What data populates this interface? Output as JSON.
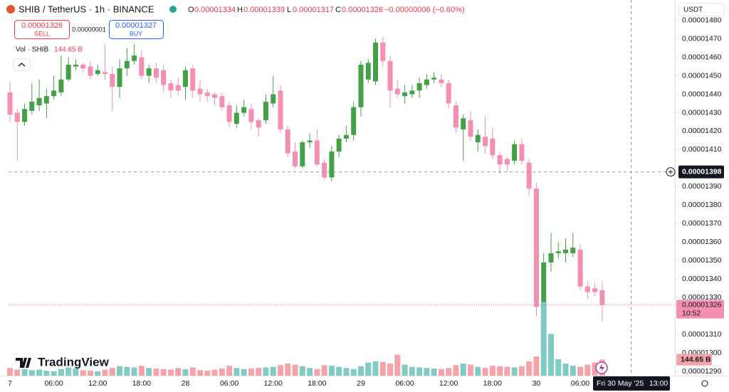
{
  "chart_data": {
    "type": "candlestick",
    "title": "SHIB / TetherUS · 1h · BINANCE",
    "legend": {
      "open_label": "O",
      "open": "0.00001334",
      "high_label": "H",
      "high": "0.00001339",
      "low_label": "L",
      "low": "0.00001317",
      "close_label": "C",
      "close": "0.00001326",
      "change": "−0.00000008 (−0.60%)"
    },
    "trade": {
      "sell_price": "0.00001326",
      "sell": "SELL",
      "spread": "0.00000001",
      "buy_price": "0.00001327",
      "buy": "BUY"
    },
    "currency": "USDT",
    "brand": "TradingView",
    "categories": [
      "7",
      null,
      null,
      null,
      null,
      null,
      "06:00",
      null,
      null,
      null,
      null,
      null,
      "12:00",
      null,
      null,
      null,
      null,
      null,
      "18:00",
      null,
      null,
      null,
      null,
      null,
      "28",
      null,
      null,
      null,
      null,
      null,
      "06:00",
      null,
      null,
      null,
      null,
      null,
      "12:00",
      null,
      null,
      null,
      null,
      null,
      "18:00",
      null,
      null,
      null,
      null,
      null,
      "29",
      null,
      null,
      null,
      null,
      null,
      "06:00",
      null,
      null,
      null,
      null,
      null,
      "12:00",
      null,
      null,
      null,
      null,
      null,
      "18:00",
      null,
      null,
      null,
      null,
      null,
      "30",
      null,
      null,
      null,
      null,
      null,
      "06:00",
      null,
      null,
      null
    ],
    "open": [
      1.441e-05,
      1.43e-05,
      1.425e-05,
      1.431e-05,
      1.434e-05,
      1.435e-05,
      1.439e-05,
      1.441e-05,
      1.448e-05,
      1.455e-05,
      1.456e-05,
      1.455e-05,
      1.451e-05,
      1.452e-05,
      1.451e-05,
      1.444e-05,
      1.454e-05,
      1.458e-05,
      1.46e-05,
      1.45e-05,
      1.454e-05,
      1.453e-05,
      1.446e-05,
      1.445e-05,
      1.444e-05,
      1.454e-05,
      1.443e-05,
      1.441e-05,
      1.44e-05,
      1.439e-05,
      1.434e-05,
      1.424e-05,
      1.43e-05,
      1.432e-05,
      1.426e-05,
      1.426e-05,
      1.435e-05,
      1.442e-05,
      1.421e-05,
      1.409e-05,
      1.401e-05,
      1.414e-05,
      1.415e-05,
      1.403e-05,
      1.395e-05,
      1.409e-05,
      1.416e-05,
      1.418e-05,
      1.433e-05,
      1.448e-05,
      1.447e-05,
      1.468e-05,
      1.458e-05,
      1.443e-05,
      1.439e-05,
      1.44e-05,
      1.442e-05,
      1.445e-05,
      1.448e-05,
      1.448e-05,
      1.446e-05,
      1.434e-05,
      1.421e-05,
      1.426e-05,
      1.414e-05,
      1.417e-05,
      1.416e-05,
      1.407e-05,
      1.405e-05,
      1.404e-05,
      1.413e-05,
      1.403e-05,
      1.389e-05,
      1.327e-05,
      1.349e-05,
      1.354e-05,
      1.354e-05,
      1.354e-05,
      1.356e-05,
      1.336e-05,
      1.335e-05,
      1.334e-05
    ],
    "high": [
      1.447e-05,
      1.432e-05,
      1.435e-05,
      1.446e-05,
      1.448e-05,
      1.443e-05,
      1.45e-05,
      1.461e-05,
      1.46e-05,
      1.459e-05,
      1.457e-05,
      1.458e-05,
      1.456e-05,
      1.467e-05,
      1.455e-05,
      1.459e-05,
      1.465e-05,
      1.467e-05,
      1.464e-05,
      1.456e-05,
      1.457e-05,
      1.456e-05,
      1.448e-05,
      1.449e-05,
      1.455e-05,
      1.456e-05,
      1.448e-05,
      1.443e-05,
      1.441e-05,
      1.441e-05,
      1.436e-05,
      1.434e-05,
      1.437e-05,
      1.435e-05,
      1.427e-05,
      1.44e-05,
      1.45e-05,
      1.445e-05,
      1.423e-05,
      1.414e-05,
      1.415e-05,
      1.419e-05,
      1.421e-05,
      1.405e-05,
      1.412e-05,
      1.418e-05,
      1.423e-05,
      1.436e-05,
      1.458e-05,
      1.459e-05,
      1.47e-05,
      1.471e-05,
      1.461e-05,
      1.448e-05,
      1.445e-05,
      1.445e-05,
      1.449e-05,
      1.451e-05,
      1.452e-05,
      1.451e-05,
      1.448e-05,
      1.436e-05,
      1.429e-05,
      1.431e-05,
      1.421e-05,
      1.428e-05,
      1.422e-05,
      1.409e-05,
      1.406e-05,
      1.415e-05,
      1.416e-05,
      1.405e-05,
      1.392e-05,
      1.354e-05,
      1.365e-05,
      1.36e-05,
      1.362e-05,
      1.365e-05,
      1.359e-05,
      1.339e-05,
      1.338e-05,
      1.339e-05
    ],
    "low": [
      1.425e-05,
      1.404e-05,
      1.423e-05,
      1.429e-05,
      1.431e-05,
      1.427e-05,
      1.437e-05,
      1.439e-05,
      1.447e-05,
      1.453e-05,
      1.452e-05,
      1.448e-05,
      1.45e-05,
      1.448e-05,
      1.431e-05,
      1.438e-05,
      1.45e-05,
      1.456e-05,
      1.448e-05,
      1.446e-05,
      1.446e-05,
      1.441e-05,
      1.438e-05,
      1.439e-05,
      1.437e-05,
      1.438e-05,
      1.436e-05,
      1.436e-05,
      1.434e-05,
      1.431e-05,
      1.422e-05,
      1.422e-05,
      1.428e-05,
      1.421e-05,
      1.417e-05,
      1.424e-05,
      1.433e-05,
      1.419e-05,
      1.406e-05,
      1.4e-05,
      1.4e-05,
      1.411e-05,
      1.401e-05,
      1.394e-05,
      1.393e-05,
      1.406e-05,
      1.414e-05,
      1.415e-05,
      1.428e-05,
      1.446e-05,
      1.445e-05,
      1.455e-05,
      1.433e-05,
      1.438e-05,
      1.435e-05,
      1.438e-05,
      1.438e-05,
      1.443e-05,
      1.446e-05,
      1.444e-05,
      1.432e-05,
      1.419e-05,
      1.404e-05,
      1.415e-05,
      1.409e-05,
      1.408e-05,
      1.405e-05,
      1.397e-05,
      1.398e-05,
      1.402e-05,
      1.402e-05,
      1.385e-05,
      1.32e-05,
      1.322e-05,
      1.344e-05,
      1.351e-05,
      1.349e-05,
      1.352e-05,
      1.334e-05,
      1.329e-05,
      1.331e-05,
      1.317e-05
    ],
    "close": [
      1.429e-05,
      1.425e-05,
      1.432e-05,
      1.436e-05,
      1.438e-05,
      1.439e-05,
      1.442e-05,
      1.448e-05,
      1.456e-05,
      1.456e-05,
      1.454e-05,
      1.45e-05,
      1.453e-05,
      1.451e-05,
      1.444e-05,
      1.454e-05,
      1.458e-05,
      1.461e-05,
      1.45e-05,
      1.454e-05,
      1.449e-05,
      1.445e-05,
      1.442e-05,
      1.442e-05,
      1.453e-05,
      1.442e-05,
      1.44e-05,
      1.439e-05,
      1.438e-05,
      1.433e-05,
      1.425e-05,
      1.43e-05,
      1.433e-05,
      1.425e-05,
      1.422e-05,
      1.436e-05,
      1.44e-05,
      1.421e-05,
      1.408e-05,
      1.401e-05,
      1.414e-05,
      1.415e-05,
      1.402e-05,
      1.395e-05,
      1.409e-05,
      1.416e-05,
      1.418e-05,
      1.433e-05,
      1.456e-05,
      1.457e-05,
      1.468e-05,
      1.458e-05,
      1.442e-05,
      1.44e-05,
      1.441e-05,
      1.442e-05,
      1.446e-05,
      1.448e-05,
      1.449e-05,
      1.446e-05,
      1.435e-05,
      1.422e-05,
      1.427e-05,
      1.417e-05,
      1.418e-05,
      1.412e-05,
      1.407e-05,
      1.402e-05,
      1.402e-05,
      1.413e-05,
      1.404e-05,
      1.389e-05,
      1.325e-05,
      1.349e-05,
      1.354e-05,
      1.355e-05,
      1.356e-05,
      1.357e-05,
      1.336e-05,
      1.333e-05,
      1.333e-05,
      1.326e-05
    ],
    "up_color": "#43a047",
    "down_color": "#f48fb1",
    "volume": {
      "name": "Vol · SHIB",
      "last_value_label": "144.65 B",
      "up_color": "#80cbc4",
      "down_color": "#f5a3a8",
      "values": [
        70,
        55,
        60,
        50,
        55,
        45,
        40,
        60,
        75,
        65,
        50,
        45,
        40,
        55,
        70,
        85,
        80,
        75,
        90,
        70,
        65,
        60,
        55,
        70,
        60,
        75,
        50,
        45,
        55,
        65,
        90,
        70,
        60,
        65,
        70,
        75,
        80,
        95,
        110,
        100,
        85,
        70,
        60,
        95,
        90,
        80,
        70,
        60,
        85,
        120,
        130,
        125,
        110,
        190,
        100,
        80,
        75,
        70,
        65,
        60,
        70,
        95,
        110,
        100,
        80,
        70,
        90,
        85,
        80,
        75,
        85,
        130,
        175,
        670,
        380,
        150,
        110,
        90,
        80,
        100,
        120,
        144.65
      ],
      "ylim": [
        0,
        700
      ]
    },
    "ylim": [
      1.287e-05,
      1.491e-05
    ],
    "yticks": [
      {
        "value": 1.48e-05,
        "label": "0.00001480"
      },
      {
        "value": 1.47e-05,
        "label": "0.00001470"
      },
      {
        "value": 1.46e-05,
        "label": "0.00001460"
      },
      {
        "value": 1.45e-05,
        "label": "0.00001450"
      },
      {
        "value": 1.44e-05,
        "label": "0.00001440"
      },
      {
        "value": 1.43e-05,
        "label": "0.00001430"
      },
      {
        "value": 1.42e-05,
        "label": "0.00001420"
      },
      {
        "value": 1.41e-05,
        "label": "0.00001410"
      },
      {
        "value": 1.39e-05,
        "label": "0.00001390"
      },
      {
        "value": 1.38e-05,
        "label": "0.00001380"
      },
      {
        "value": 1.37e-05,
        "label": "0.00001370"
      },
      {
        "value": 1.36e-05,
        "label": "0.00001360"
      },
      {
        "value": 1.35e-05,
        "label": "0.00001350"
      },
      {
        "value": 1.34e-05,
        "label": "0.00001340"
      },
      {
        "value": 1.33e-05,
        "label": "0.00001330"
      },
      {
        "value": 1.31e-05,
        "label": "0.00001310"
      },
      {
        "value": 1.3e-05,
        "label": "0.00001300"
      },
      {
        "value": 1.29e-05,
        "label": "0.00001290"
      }
    ],
    "last_price": {
      "value": 1.326e-05,
      "label": "0.00001326",
      "countdown": "10:52"
    },
    "crosshair": {
      "value": 1.398e-05,
      "label": "0.00001398",
      "date": "Fri 30 May '25",
      "time": "13:00"
    }
  }
}
